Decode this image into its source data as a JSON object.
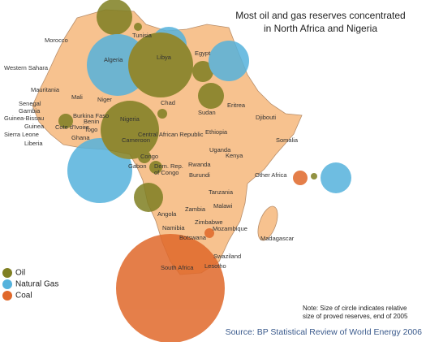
{
  "title": [
    "Most oil and gas reserves concentrated",
    "in North Africa and Nigeria"
  ],
  "labels": [
    "Morocco",
    "Western Sahara",
    "Tunisia",
    "Algeria",
    "Libya",
    "Egypt",
    "Mauritania",
    "Mali",
    "Niger",
    "Chad",
    "Sudan",
    "Eritrea",
    "Djibouti",
    "Senegal",
    "Gambia",
    "Guinea-Bissau",
    "Guinea",
    "Sierra Leone",
    "Liberia",
    "Cote d'Ivoire",
    "Burkina Faso",
    "Benin",
    "Togo",
    "Ghana",
    "Nigeria",
    "Cameroon",
    "Central African Republic",
    "Ethiopia",
    "Somalia",
    "Uganda",
    "Kenya",
    "Gabon",
    "Congo",
    "Dem. Rep.",
    "of Congo",
    "Rwanda",
    "Burundi",
    "Tanzania",
    "Other Africa",
    "Angola",
    "Zambia",
    "Malawi",
    "Zimbabwe",
    "Mozambique",
    "Namibia",
    "Botswana",
    "Madagascar",
    "Swaziland",
    "Lesotho",
    "South Africa"
  ],
  "legend": [
    "Oil",
    "Natural Gas",
    "Coal"
  ],
  "note": [
    "Note: Size of circle indicates relative",
    "size of proved reserves, end of 2005"
  ],
  "source": "Source: BP Statistical Review of World Energy 2006"
}
